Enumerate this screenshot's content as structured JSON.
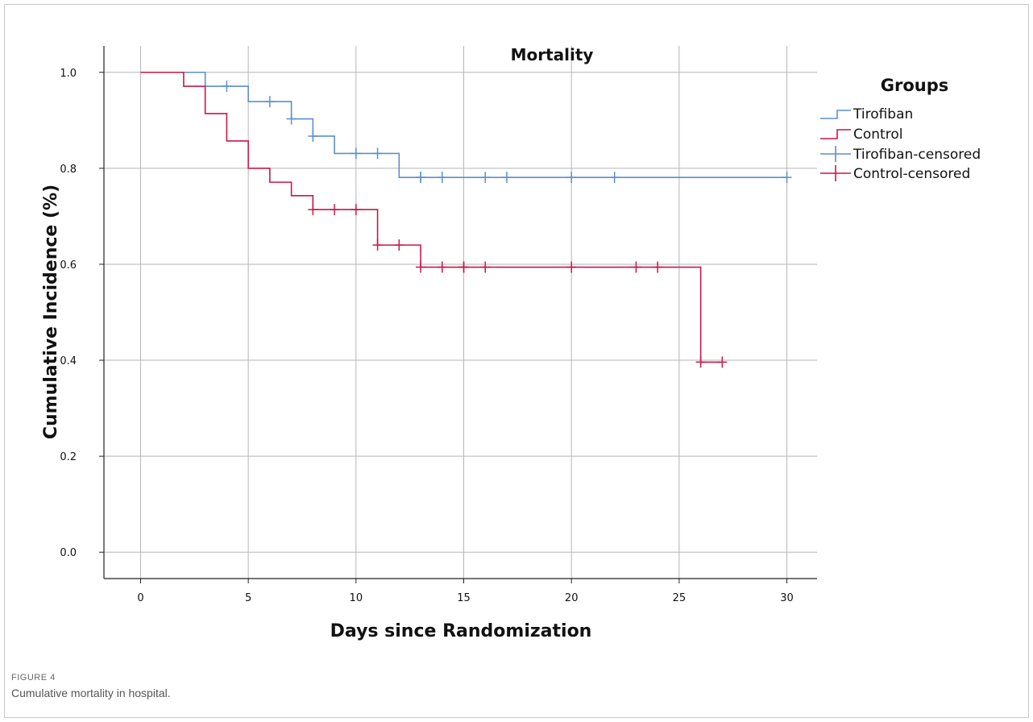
{
  "figure": {
    "label": "FIGURE 4",
    "caption": "Cumulative mortality in hospital."
  },
  "chart_data": {
    "type": "line",
    "subtype": "kaplan-meier step curve",
    "title": "Mortality",
    "xlabel": "Days since Randomization",
    "ylabel": "Cumulative Incidence (%)",
    "xlim": [
      -1.7,
      31.4
    ],
    "ylim": [
      -0.055,
      1.055
    ],
    "x_ticks": [
      0,
      5,
      10,
      15,
      20,
      25,
      30
    ],
    "x_tick_labels": [
      "0",
      "5",
      "10",
      "15",
      "20",
      "25",
      "30"
    ],
    "y_ticks": [
      0.0,
      0.2,
      0.4,
      0.6,
      0.8,
      1.0
    ],
    "y_tick_labels": [
      "0.0",
      "0.2",
      "0.4",
      "0.6",
      "0.8",
      "1.0"
    ],
    "grid": true,
    "legend": {
      "title": "Groups",
      "placement": "right",
      "entries": [
        "Tirofiban",
        "Control",
        "Tirofiban-censored",
        "Control-censored"
      ]
    },
    "series": [
      {
        "name": "Tirofiban",
        "color": "#5b8fcf",
        "steps": [
          [
            0,
            1.0
          ],
          [
            3,
            0.971
          ],
          [
            5,
            0.939
          ],
          [
            7,
            0.903
          ],
          [
            8,
            0.867
          ],
          [
            9,
            0.831
          ],
          [
            12,
            0.781
          ],
          [
            30,
            0.781
          ]
        ],
        "censored": [
          [
            4,
            0.971
          ],
          [
            6,
            0.939
          ],
          [
            7,
            0.903
          ],
          [
            8,
            0.867
          ],
          [
            10,
            0.831
          ],
          [
            11,
            0.831
          ],
          [
            13,
            0.781
          ],
          [
            13,
            0.781
          ],
          [
            14,
            0.781
          ],
          [
            16,
            0.781
          ],
          [
            17,
            0.781
          ],
          [
            20,
            0.781
          ],
          [
            22,
            0.781
          ],
          [
            30,
            0.781
          ]
        ]
      },
      {
        "name": "Control",
        "color": "#c8174a",
        "steps": [
          [
            0,
            1.0
          ],
          [
            2,
            0.971
          ],
          [
            3,
            0.914
          ],
          [
            4,
            0.857
          ],
          [
            5,
            0.8
          ],
          [
            6,
            0.771
          ],
          [
            7,
            0.743
          ],
          [
            8,
            0.714
          ],
          [
            11,
            0.64
          ],
          [
            13,
            0.594
          ],
          [
            26,
            0.396
          ],
          [
            27,
            0.396
          ]
        ],
        "censored": [
          [
            8,
            0.714
          ],
          [
            9,
            0.714
          ],
          [
            10,
            0.714
          ],
          [
            11,
            0.64
          ],
          [
            12,
            0.64
          ],
          [
            13,
            0.594
          ],
          [
            14,
            0.594
          ],
          [
            15,
            0.594
          ],
          [
            15,
            0.594
          ],
          [
            16,
            0.594
          ],
          [
            20,
            0.594
          ],
          [
            23,
            0.594
          ],
          [
            24,
            0.594
          ],
          [
            26,
            0.396
          ],
          [
            27,
            0.396
          ]
        ]
      }
    ]
  }
}
